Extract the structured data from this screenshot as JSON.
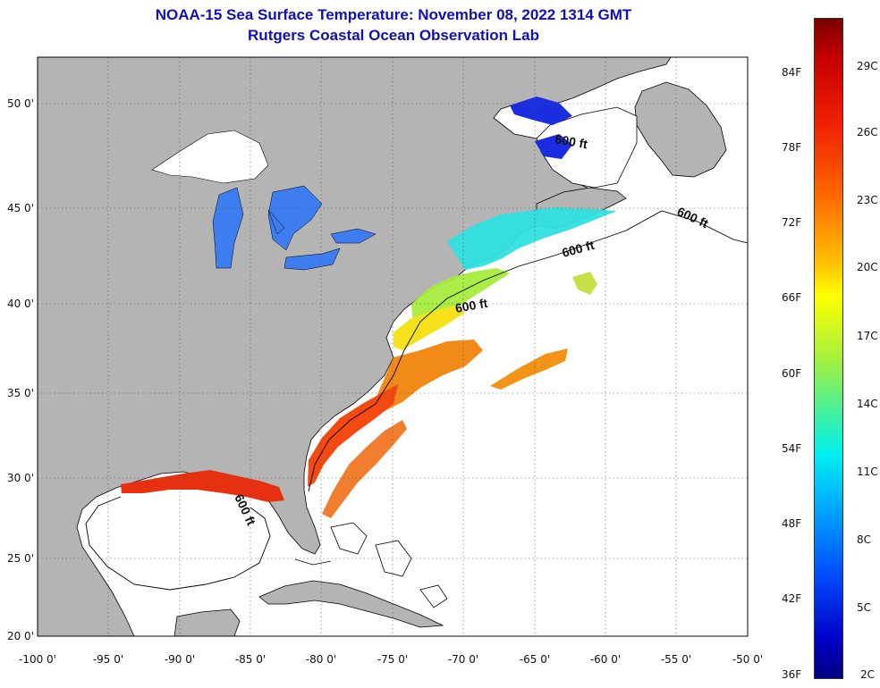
{
  "title_line1": "NOAA-15 Sea Surface Temperature:  November 08, 2022 1314 GMT",
  "title_line2": "Rutgers Coastal Ocean Observation Lab",
  "lon_labels": [
    "-100 0'",
    "-95 0'",
    "-90 0'",
    "-85 0'",
    "-80 0'",
    "-75 0'",
    "-70 0'",
    "-65 0'",
    "-60 0'",
    "-55 0'",
    "-50 0'"
  ],
  "lat_labels": [
    "50 0'",
    "45 0'",
    "40 0'",
    "35 0'",
    "30 0'",
    "25 0'",
    "20 0'"
  ],
  "contour_label": "600 ft",
  "colorbar": {
    "fahrenheit": [
      "84F",
      "78F",
      "72F",
      "66F",
      "60F",
      "54F",
      "48F",
      "42F",
      "36F"
    ],
    "celsius": [
      "29C",
      "26C",
      "23C",
      "20C",
      "17C",
      "14C",
      "11C",
      "8C",
      "5C",
      "2C"
    ]
  },
  "colors": {
    "land": "#b4b4b4",
    "ocean": "#ffffff",
    "title": "#1010b8"
  }
}
